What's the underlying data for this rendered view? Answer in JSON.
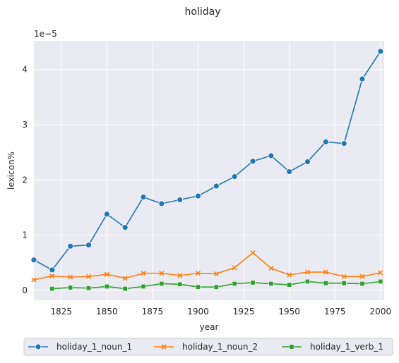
{
  "chart_data": {
    "type": "line",
    "title": "holiday",
    "xlabel": "year",
    "ylabel": "lexicon%",
    "y_offset_text": "1e−5",
    "xlim": [
      1810,
      2002
    ],
    "ylim": [
      -0.18,
      4.52
    ],
    "xticks": [
      1825,
      1850,
      1875,
      1900,
      1925,
      1950,
      1975,
      2000
    ],
    "yticks": [
      0,
      1,
      2,
      3,
      4
    ],
    "grid": true,
    "legend_position": "bottom",
    "series": [
      {
        "name": "holiday_1_noun_1",
        "color": "#1f77b4",
        "marker": "circle",
        "x": [
          1810,
          1820,
          1830,
          1840,
          1850,
          1860,
          1870,
          1880,
          1890,
          1900,
          1910,
          1920,
          1930,
          1940,
          1950,
          1960,
          1970,
          1980,
          1990,
          2000
        ],
        "values": [
          0.55,
          0.37,
          0.8,
          0.82,
          1.38,
          1.14,
          1.69,
          1.57,
          1.64,
          1.71,
          1.89,
          2.06,
          2.34,
          2.44,
          2.15,
          2.33,
          2.69,
          2.66,
          3.83,
          4.33
        ]
      },
      {
        "name": "holiday_1_noun_2",
        "color": "#ff7f0e",
        "marker": "x",
        "x": [
          1810,
          1820,
          1830,
          1840,
          1850,
          1860,
          1870,
          1880,
          1890,
          1900,
          1910,
          1920,
          1930,
          1940,
          1950,
          1960,
          1970,
          1980,
          1990,
          2000
        ],
        "values": [
          0.19,
          0.26,
          0.24,
          0.25,
          0.29,
          0.22,
          0.31,
          0.31,
          0.27,
          0.31,
          0.3,
          0.41,
          0.68,
          0.4,
          0.28,
          0.33,
          0.33,
          0.25,
          0.25,
          0.32
        ]
      },
      {
        "name": "holiday_1_verb_1",
        "color": "#2ca02c",
        "marker": "square",
        "x": [
          1820,
          1830,
          1840,
          1850,
          1860,
          1870,
          1880,
          1890,
          1900,
          1910,
          1920,
          1930,
          1940,
          1950,
          1960,
          1970,
          1980,
          1990,
          2000
        ],
        "values": [
          0.03,
          0.05,
          0.04,
          0.07,
          0.03,
          0.07,
          0.12,
          0.11,
          0.06,
          0.06,
          0.12,
          0.14,
          0.12,
          0.1,
          0.16,
          0.13,
          0.13,
          0.12,
          0.16
        ]
      }
    ]
  }
}
